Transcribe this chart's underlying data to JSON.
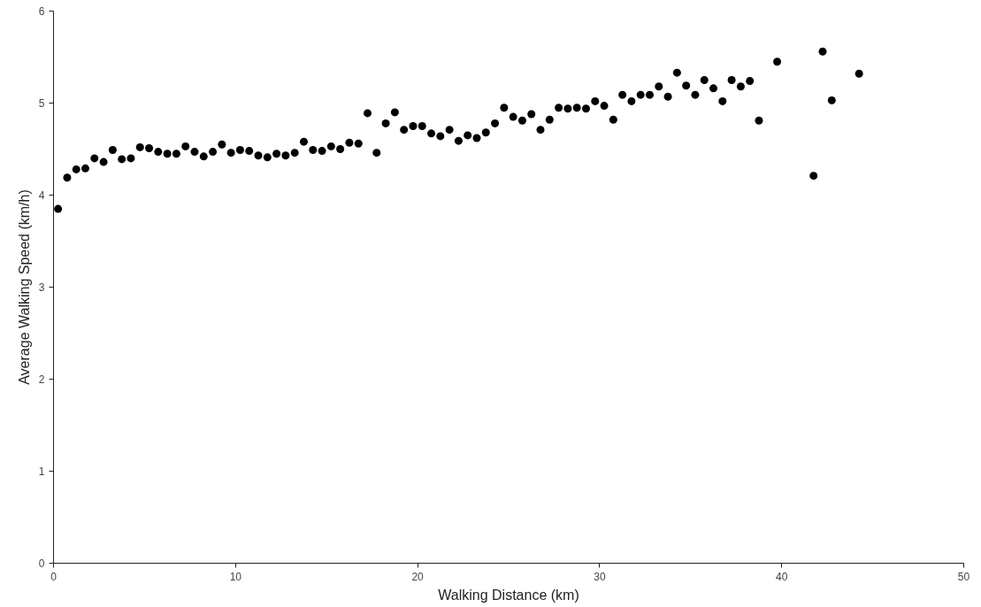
{
  "chart_data": {
    "type": "scatter",
    "xlabel": "Walking Distance (km)",
    "ylabel": "Average Walking Speed (km/h)",
    "x": [
      0.25,
      0.75,
      1.25,
      1.75,
      2.25,
      2.75,
      3.25,
      3.75,
      4.25,
      4.75,
      5.25,
      5.75,
      6.25,
      6.75,
      7.25,
      7.75,
      8.25,
      8.75,
      9.25,
      9.75,
      10.25,
      10.75,
      11.25,
      11.75,
      12.25,
      12.75,
      13.25,
      13.75,
      14.25,
      14.75,
      15.25,
      15.75,
      16.25,
      16.75,
      17.25,
      17.75,
      18.25,
      18.75,
      19.25,
      19.75,
      20.25,
      20.75,
      21.25,
      21.75,
      22.25,
      22.75,
      23.25,
      23.75,
      24.25,
      24.75,
      25.25,
      25.75,
      26.25,
      26.75,
      27.25,
      27.75,
      28.25,
      28.75,
      29.25,
      29.75,
      30.25,
      30.75,
      31.25,
      31.75,
      32.25,
      32.75,
      33.25,
      33.75,
      34.25,
      34.75,
      35.25,
      35.75,
      36.25,
      36.75,
      37.25,
      37.75,
      38.25,
      38.75,
      39.75,
      41.75,
      42.25,
      42.75,
      44.25
    ],
    "values": [
      3.85,
      4.19,
      4.28,
      4.29,
      4.4,
      4.36,
      4.49,
      4.39,
      4.4,
      4.52,
      4.51,
      4.47,
      4.45,
      4.45,
      4.53,
      4.47,
      4.42,
      4.47,
      4.55,
      4.46,
      4.49,
      4.48,
      4.43,
      4.41,
      4.45,
      4.43,
      4.46,
      4.58,
      4.49,
      4.48,
      4.53,
      4.5,
      4.57,
      4.56,
      4.89,
      4.46,
      4.78,
      4.9,
      4.71,
      4.75,
      4.75,
      4.67,
      4.64,
      4.71,
      4.59,
      4.65,
      4.62,
      4.68,
      4.78,
      4.95,
      4.85,
      4.81,
      4.88,
      4.71,
      4.82,
      4.95,
      4.94,
      4.95,
      4.94,
      5.02,
      4.97,
      4.82,
      5.09,
      5.02,
      5.09,
      5.09,
      5.18,
      5.07,
      5.33,
      5.19,
      5.09,
      5.25,
      5.16,
      5.02,
      5.25,
      5.18,
      5.24,
      4.81,
      5.45,
      4.21,
      5.56,
      5.03,
      5.32
    ],
    "color": "#000000",
    "marker": "circle",
    "xlim": [
      0,
      50
    ],
    "xticks": [
      0,
      10,
      20,
      30,
      40,
      50
    ],
    "ylim": [
      0,
      6
    ],
    "yticks": [
      0,
      1,
      2,
      3,
      4,
      5,
      6
    ],
    "grid": false
  }
}
